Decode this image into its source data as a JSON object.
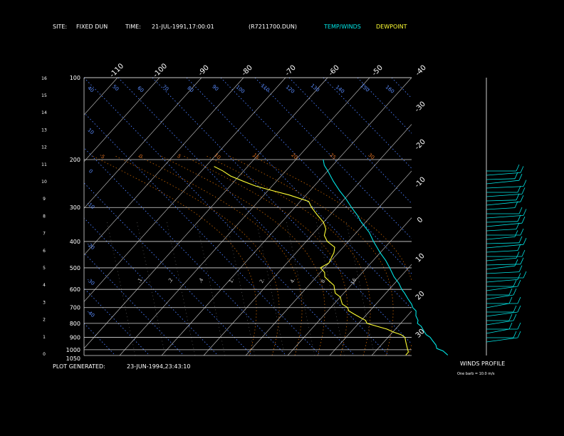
{
  "header": {
    "site_label": "SITE:",
    "site_value": "FIXED DUN",
    "time_label": "TIME:",
    "time_value": "21-JUL-1991,17:00:01",
    "file_id": "(R7211700.DUN)",
    "legend_temp": "TEMP/WINDS",
    "legend_dew": "DEWPOINT"
  },
  "footer": {
    "generated_label": "PLOT GENERATED:",
    "generated_value": "23-JUN-1994,23:43:10"
  },
  "winds": {
    "title": "WINDS PROFILE",
    "note": "One barb = 10.0 m/s"
  },
  "colors": {
    "temp": "#00e5e5",
    "dew": "#ffff33",
    "isotherm": "#d0d0d0",
    "dry_adiabat": "#4a7dff",
    "moist_adiabat": "#c86400",
    "mixing_ratio": "#c8c8c8",
    "label_blue": "#5a8cff",
    "label_orange": "#e07020"
  },
  "chart_data": {
    "type": "line",
    "chart_kind": "skew-T log-p sounding",
    "pressure_ticks": [
      "100",
      "200",
      "300",
      "400",
      "500",
      "600",
      "700",
      "800",
      "900",
      "1000",
      "1050"
    ],
    "height_ticks": [
      "0",
      "1",
      "2",
      "3",
      "4",
      "5",
      "6",
      "7",
      "8",
      "9",
      "10",
      "11",
      "12",
      "13",
      "14",
      "15",
      "16"
    ],
    "isotherm_labels_top": [
      "-110",
      "-100",
      "-90",
      "-80",
      "-70",
      "-60",
      "-50",
      "-40"
    ],
    "isotherm_labels_right": [
      "-30",
      "-20",
      "-10",
      "0",
      "10",
      "20",
      "30"
    ],
    "dry_adiabat_labels": [
      "40",
      "50",
      "60",
      "70",
      "80",
      "90",
      "100",
      "110",
      "120",
      "130",
      "140",
      "150",
      "160",
      "10",
      "0",
      "-10",
      "-20",
      "-30",
      "-40"
    ],
    "moist_adiabat_labels": [
      "-5",
      "0",
      "5",
      "10",
      "15",
      "20",
      "25",
      "30"
    ],
    "mixing_ratio_labels": [
      ".1",
      ".2",
      ".4",
      "1.",
      "2.",
      "4.",
      "8.",
      "16."
    ],
    "y_axis": "pressure (hPa), log scale",
    "ylim": [
      1050,
      100
    ],
    "series": [
      {
        "name": "TEMP/WINDS",
        "points": [
          [
            1046,
            28
          ],
          [
            1010,
            26
          ],
          [
            990,
            24
          ],
          [
            960,
            23
          ],
          [
            930,
            21.5
          ],
          [
            900,
            20
          ],
          [
            880,
            18.5
          ],
          [
            850,
            17
          ],
          [
            820,
            15.5
          ],
          [
            800,
            14
          ],
          [
            780,
            13.5
          ],
          [
            750,
            12
          ],
          [
            720,
            11
          ],
          [
            700,
            9.5
          ],
          [
            680,
            8.5
          ],
          [
            650,
            6.5
          ],
          [
            620,
            4.5
          ],
          [
            600,
            3
          ],
          [
            570,
            1
          ],
          [
            540,
            -1.5
          ],
          [
            500,
            -4.5
          ],
          [
            470,
            -7
          ],
          [
            440,
            -10
          ],
          [
            400,
            -14
          ],
          [
            370,
            -17
          ],
          [
            340,
            -21
          ],
          [
            320,
            -23.5
          ],
          [
            300,
            -26.5
          ],
          [
            280,
            -29.5
          ],
          [
            260,
            -33
          ],
          [
            240,
            -36.5
          ],
          [
            220,
            -40
          ],
          [
            210,
            -42
          ],
          [
            200,
            -43.5
          ]
        ]
      },
      {
        "name": "DEWPOINT",
        "points": [
          [
            1046,
            18
          ],
          [
            1020,
            18
          ],
          [
            990,
            17
          ],
          [
            960,
            16
          ],
          [
            930,
            15
          ],
          [
            900,
            14
          ],
          [
            880,
            12.5
          ],
          [
            860,
            10
          ],
          [
            840,
            8
          ],
          [
            820,
            5
          ],
          [
            800,
            2
          ],
          [
            780,
            1
          ],
          [
            760,
            -1
          ],
          [
            740,
            -3
          ],
          [
            720,
            -5
          ],
          [
            700,
            -6
          ],
          [
            680,
            -8
          ],
          [
            660,
            -9
          ],
          [
            640,
            -10
          ],
          [
            620,
            -12
          ],
          [
            600,
            -13
          ],
          [
            580,
            -14
          ],
          [
            560,
            -16
          ],
          [
            540,
            -18
          ],
          [
            520,
            -19
          ],
          [
            500,
            -21
          ],
          [
            480,
            -20
          ],
          [
            460,
            -20.5
          ],
          [
            440,
            -21
          ],
          [
            420,
            -22
          ],
          [
            400,
            -25
          ],
          [
            380,
            -27
          ],
          [
            360,
            -28
          ],
          [
            340,
            -30
          ],
          [
            320,
            -33
          ],
          [
            300,
            -36
          ],
          [
            285,
            -38
          ],
          [
            270,
            -44
          ],
          [
            260,
            -49
          ],
          [
            250,
            -54
          ],
          [
            240,
            -58
          ],
          [
            230,
            -62
          ],
          [
            220,
            -65
          ],
          [
            212,
            -68
          ]
        ]
      }
    ]
  }
}
